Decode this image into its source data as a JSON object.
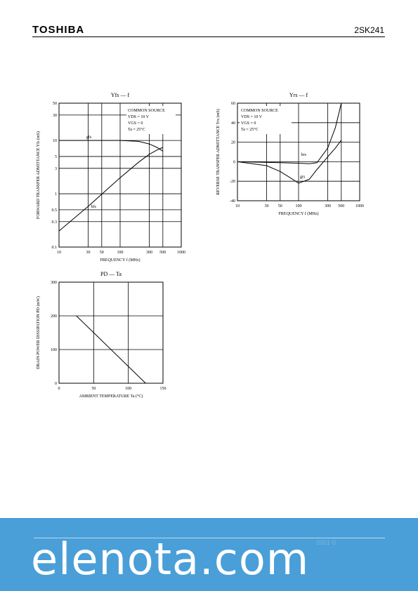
{
  "header": {
    "brand": "TOSHIBA",
    "part": "2SK241"
  },
  "colors": {
    "band": "#4a9fd8",
    "ink": "#000000",
    "watermark": "#ffffff"
  },
  "chart_data": [
    {
      "type": "line",
      "title": "Yfs — f",
      "xlabel": "FREQUENCY f (MHz)",
      "ylabel": "FORWARD TRANSFER ADMITTANCE Yfs (mS)",
      "x_scale": "log",
      "y_scale": "log",
      "xlim": [
        10,
        1000
      ],
      "ylim": [
        0.1,
        50
      ],
      "x_ticks": [
        "10",
        "30",
        "50",
        "100",
        "300",
        "500",
        "1000"
      ],
      "y_ticks": [
        "0.1",
        "0.3",
        "0.5",
        "1",
        "3",
        "5",
        "10",
        "30",
        "50"
      ],
      "legend": [
        "COMMON SOURCE",
        "VDS = 10 V",
        "VGS = 0",
        "Ta = 25°C"
      ],
      "series": [
        {
          "name": "gfs",
          "x": [
            10,
            30,
            100,
            200,
            300,
            400,
            500
          ],
          "y": [
            10,
            10,
            10,
            9.6,
            8.6,
            7.4,
            6.3
          ]
        },
        {
          "name": "bfs",
          "x": [
            10,
            30,
            100,
            200,
            300,
            400,
            500
          ],
          "y": [
            0.2,
            0.58,
            2.0,
            3.9,
            5.5,
            6.6,
            7.4
          ]
        }
      ]
    },
    {
      "type": "line",
      "title": "Yrs — f",
      "xlabel": "FREQUENCY f (MHz)",
      "ylabel": "REVERSE TRANSFER ADMITTANCE Yrs (mS)",
      "x_scale": "log",
      "y_scale": "linear",
      "xlim": [
        10,
        1000
      ],
      "ylim": [
        -40,
        60
      ],
      "x_ticks": [
        "10",
        "30",
        "50",
        "100",
        "300",
        "500",
        "1000"
      ],
      "y_ticks": [
        "60",
        "40",
        "20",
        "0",
        "-20",
        "-40"
      ],
      "legend": [
        "COMMON SOURCE",
        "VDS = 10 V",
        "VGS = 0",
        "Ta = 25°C"
      ],
      "series": [
        {
          "name": "brs",
          "x": [
            10,
            50,
            100,
            150,
            200,
            300,
            400,
            500
          ],
          "y": [
            0,
            -1,
            -1.5,
            -2,
            -1,
            14,
            35,
            60
          ]
        },
        {
          "name": "grs",
          "x": [
            10,
            30,
            50,
            80,
            100,
            150,
            200,
            300,
            400,
            500
          ],
          "y": [
            0,
            -4,
            -10,
            -18,
            -22,
            -18,
            -8,
            5,
            14,
            22
          ]
        }
      ]
    },
    {
      "type": "line",
      "title": "PD — Ta",
      "xlabel": "AMBIENT TEMPERATURE Ta (°C)",
      "ylabel": "DRAIN POWER DISSIPATION PD (mW)",
      "xlim": [
        0,
        150
      ],
      "ylim": [
        0,
        300
      ],
      "x_ticks": [
        "0",
        "50",
        "100",
        "150"
      ],
      "y_ticks": [
        "0",
        "100",
        "200",
        "300"
      ],
      "series": [
        {
          "x": [
            25,
            125
          ],
          "y": [
            200,
            0
          ]
        }
      ]
    }
  ],
  "footer": {
    "watermark": "elenota.com",
    "date_fragment": "2001-0"
  }
}
